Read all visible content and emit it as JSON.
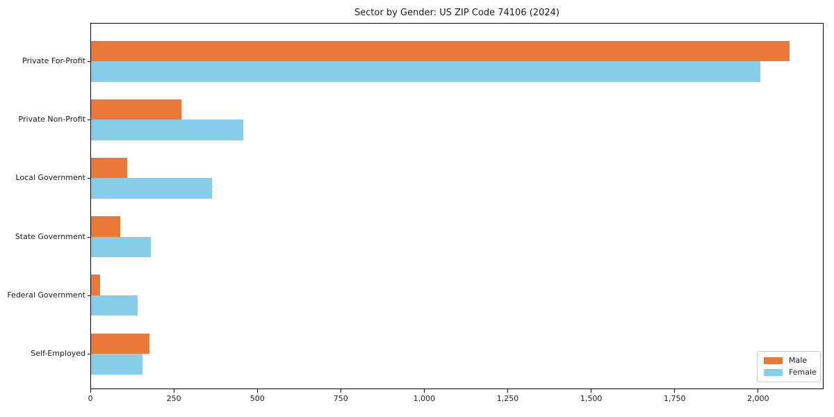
{
  "chart_data": {
    "type": "bar",
    "orientation": "horizontal",
    "title": "Sector by Gender: US ZIP Code 74106 (2024)",
    "categories": [
      "Private For-Profit",
      "Private Non-Profit",
      "Local Government",
      "State Government",
      "Federal Government",
      "Self-Employed"
    ],
    "series": [
      {
        "name": "Male",
        "color": "#E87938",
        "values": [
          2092,
          271,
          108,
          87,
          27,
          175
        ]
      },
      {
        "name": "Female",
        "color": "#87CEEB",
        "values": [
          2005,
          456,
          362,
          178,
          139,
          155
        ]
      }
    ],
    "xlabel": "",
    "ylabel": "",
    "xlim": [
      0,
      2196
    ],
    "x_ticks": [
      0,
      250,
      500,
      750,
      1000,
      1250,
      1500,
      1750,
      2000
    ],
    "x_tick_labels": [
      "0",
      "250",
      "500",
      "750",
      "1,000",
      "1,250",
      "1,500",
      "1,750",
      "2,000"
    ],
    "grid": false,
    "legend": {
      "position": "lower right",
      "items": [
        "Male",
        "Female"
      ]
    }
  }
}
